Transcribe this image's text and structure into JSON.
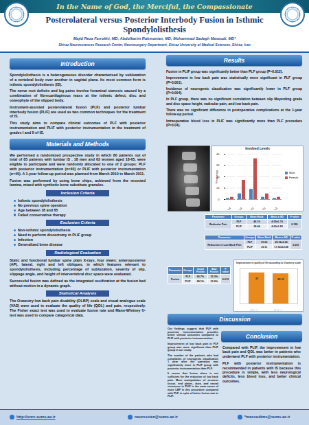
{
  "header": {
    "motto": "In the Name of God, the Merciful, the Compassionate",
    "title": "Posterolateral versus Posterior Interbody Fusion in Isthmic Spondylolisthesis",
    "authors": "Majid Reza Farrokhi, MD; Abdolkarim Rahmanian, MD; Mohammad Sadegh Masoudi, MD*",
    "affiliation": "Shiraz Neurosciences Research Center, Neurosurgery Department, Shiraz University of Medical Sciences, Shiraz, Iran"
  },
  "introduction": {
    "heading": "Introduction",
    "paragraphs": [
      "Spondylolisthesis is a heterogeneous disorder characterised by subluxation of a vertebral body over another in sagittal plane. Its most common form is isthmic spondylolisthesis (IS).",
      "The nerve root deficits and leg pains involve foraminal stenosis caused by a combination of fibrocartilaginous mass at the isthmic defect, disc and osteophyte of the slipped body.",
      "Instrument-assisted posterolateral fusion (PLF) and posterior lumbar interbody fusion (PLIF) are used as two common techniques for the treatment of IS.",
      "This study aims to compare clinical outcomes of PLF with posterior instrumentation and PLIF with posterior instrumentation in the treatment of grades I and II of IS."
    ]
  },
  "methods": {
    "heading": "Materials and Methods",
    "paragraphs": [
      "We performed a randomized prospective study in which 80 patients out of total of 85 patients with lumbar IS , 18 men and 62 women aged 18-65, were eligible to participate and were randomly allocated to one of 2 groups: PLF with posterior instrumentation (n=40) or PLIF with posterior instrumentation (n=40). A 1-year follow-up period was planned from March 2010 to March 2011.",
      "Fusion was performed by using bone chips, achieved from the resected lamina, mixed with synthetic bone substitute granules."
    ]
  },
  "inclusion": {
    "heading": "Inclusion Criteria",
    "items": [
      "Isthmic spondylolisthesis",
      "No previous spine operation",
      "Age between 18 and 65",
      "Failed conservative therapy"
    ]
  },
  "exclusion": {
    "heading": "Exclusion Criteria",
    "items": [
      "Non-isthmic spondylolisthesis",
      "Need to perform discectomy in PLIF group",
      "Infection",
      "Generalized bone disease"
    ]
  },
  "radiological": {
    "heading": "Radiological Evaluation",
    "paragraphs": [
      "Static and functional lumbar spine plain X-rays, four views: anteroposterior (AP), lateral, right and left obliques, in which features relevant to spondylolisthesis, including percentage of subluxation, severity of slip, slippage angle, and height of intervertebral disc space were evaluated.",
      "Successful fusion was defined as the integrated ossification at the fusion bed without motion in a dynamic graph."
    ]
  },
  "statistics": {
    "heading": "Statistical Analysis",
    "paragraphs": [
      "The Oswestry low back pain disability (OLBP) scale and visual analogue scale (VAS) were used to evaluate the quality of life (QOL) and pain, respectively. The Fisher exact test was used to evaluate fusion rate and Mann-Whitney U-test was used to compare categorical data."
    ]
  },
  "results": {
    "heading": "Results",
    "paragraphs": [
      "Fusion in PLIF group was significantly better than PLF group (P=0.012).",
      "Improvement in low back pain was statistically more significant in PLF group (P=0.001).",
      "Incidence of neurogenic claudication was significantly lower in PLF group (P=0.004).",
      "In PLF group, there was no significant correlation between slip Meyerding grade and disc space height, radicular pain, and low back pain.",
      "There was no significant difference in postoperative complications at the 1-year follow-up period.",
      "Intraoperative blood loss in PLIF was significantly more than PLF procedure (P=0.04)."
    ]
  },
  "tables": [
    {
      "columns": [
        "Parameter",
        "Groups",
        "Mean Rank",
        "Mean ± SD",
        "P value"
      ],
      "parameter": "Radicular Pain",
      "rows": [
        [
          "PLF",
          "46.19",
          "4.59±1.79"
        ],
        [
          "PLIF",
          "38.44",
          "4.02±1.83"
        ]
      ],
      "p_value": "0.128"
    },
    {
      "columns": [
        "Parameter",
        "Groups",
        "Mean Rank",
        "Mean ± SD",
        "P value"
      ],
      "parameter": "Reduction in Low Back Pain",
      "rows": [
        [
          "PLF",
          "51.00",
          "25.16±9.26"
        ],
        [
          "PLIF",
          "33.11",
          "17.10±12.58"
        ]
      ],
      "p_value": "0.001"
    },
    {
      "columns": [
        "Parameter",
        "Groups",
        "Good Fusion",
        "Bad Fusion",
        "P value"
      ],
      "parameter": "Fusion",
      "rows": [
        [
          "PLF",
          "66.7%",
          "33.3%"
        ],
        [
          "PLIF",
          "89.1%",
          "10.9%"
        ]
      ],
      "p_value": "0.012"
    }
  ],
  "discussion": {
    "heading": "Discussion",
    "paragraphs": [
      "Our findings suggest that PLF with posterior instrumentation provides better clinical outcomes compared to PLIF with posterior instrumentation.",
      "Improvement of low back pain in PLF group was more significant than PLIF group in our study.",
      "The number of the patients who had complaints of neurogenic claudication 1 year after the operation was significantly more in PLIF group with posterior instrumentation than PLF.",
      "It seems that fusion alone is not sufficient for the reduction of low back pain. More manipulation of osseous tissue, end plates, dura, and neural structures in PLIF is the main cause of more LBP in this procedure compared with PLF, in spite of better fusion rate in PLIF."
    ]
  },
  "conclusion": {
    "heading": "Conclusion",
    "paragraphs": [
      "Compared with PLIF, the improvement in low back pain and QOL was better in patients who underwent PLF with posterior instrumentation.",
      "PLF with posterior instrumentation is recommended in patients with IS because this procedure is simple, with less neurological deficits, less blood loss, and better clinical outcomes."
    ]
  },
  "footer": {
    "website": "http://snrc.sums.ac.ir",
    "email": "neuroscien@sums.ac.ir",
    "contact": "*masoudims@sums.ac.ir"
  },
  "chart_data": [
    {
      "type": "bar",
      "title": "Involved Levels",
      "categories": [
        "L3-L4",
        "L4-L5",
        "L5-S1",
        "L4-S1",
        "L2-L3"
      ],
      "series": [
        {
          "name": "Male",
          "color": "#4f81bd",
          "values": [
            1,
            5,
            9,
            2,
            1
          ]
        },
        {
          "name": "Female",
          "color": "#c0504d",
          "values": [
            2,
            17,
            36,
            5,
            2
          ]
        }
      ],
      "ylabel": "Frequency",
      "ylim": [
        0,
        40
      ],
      "yticks": [
        0,
        10,
        20,
        30,
        40
      ],
      "grid": true,
      "legend": "right"
    },
    {
      "type": "bar",
      "title": "Improvement in quality of life according to Oswestry scale",
      "categories": [
        "PLF Group",
        "PLIF Group"
      ],
      "values": [
        31,
        30.11
      ],
      "color": "#e8891d",
      "ylim": [
        0,
        35
      ],
      "data_labels": true,
      "tick_labels": "x"
    }
  ]
}
